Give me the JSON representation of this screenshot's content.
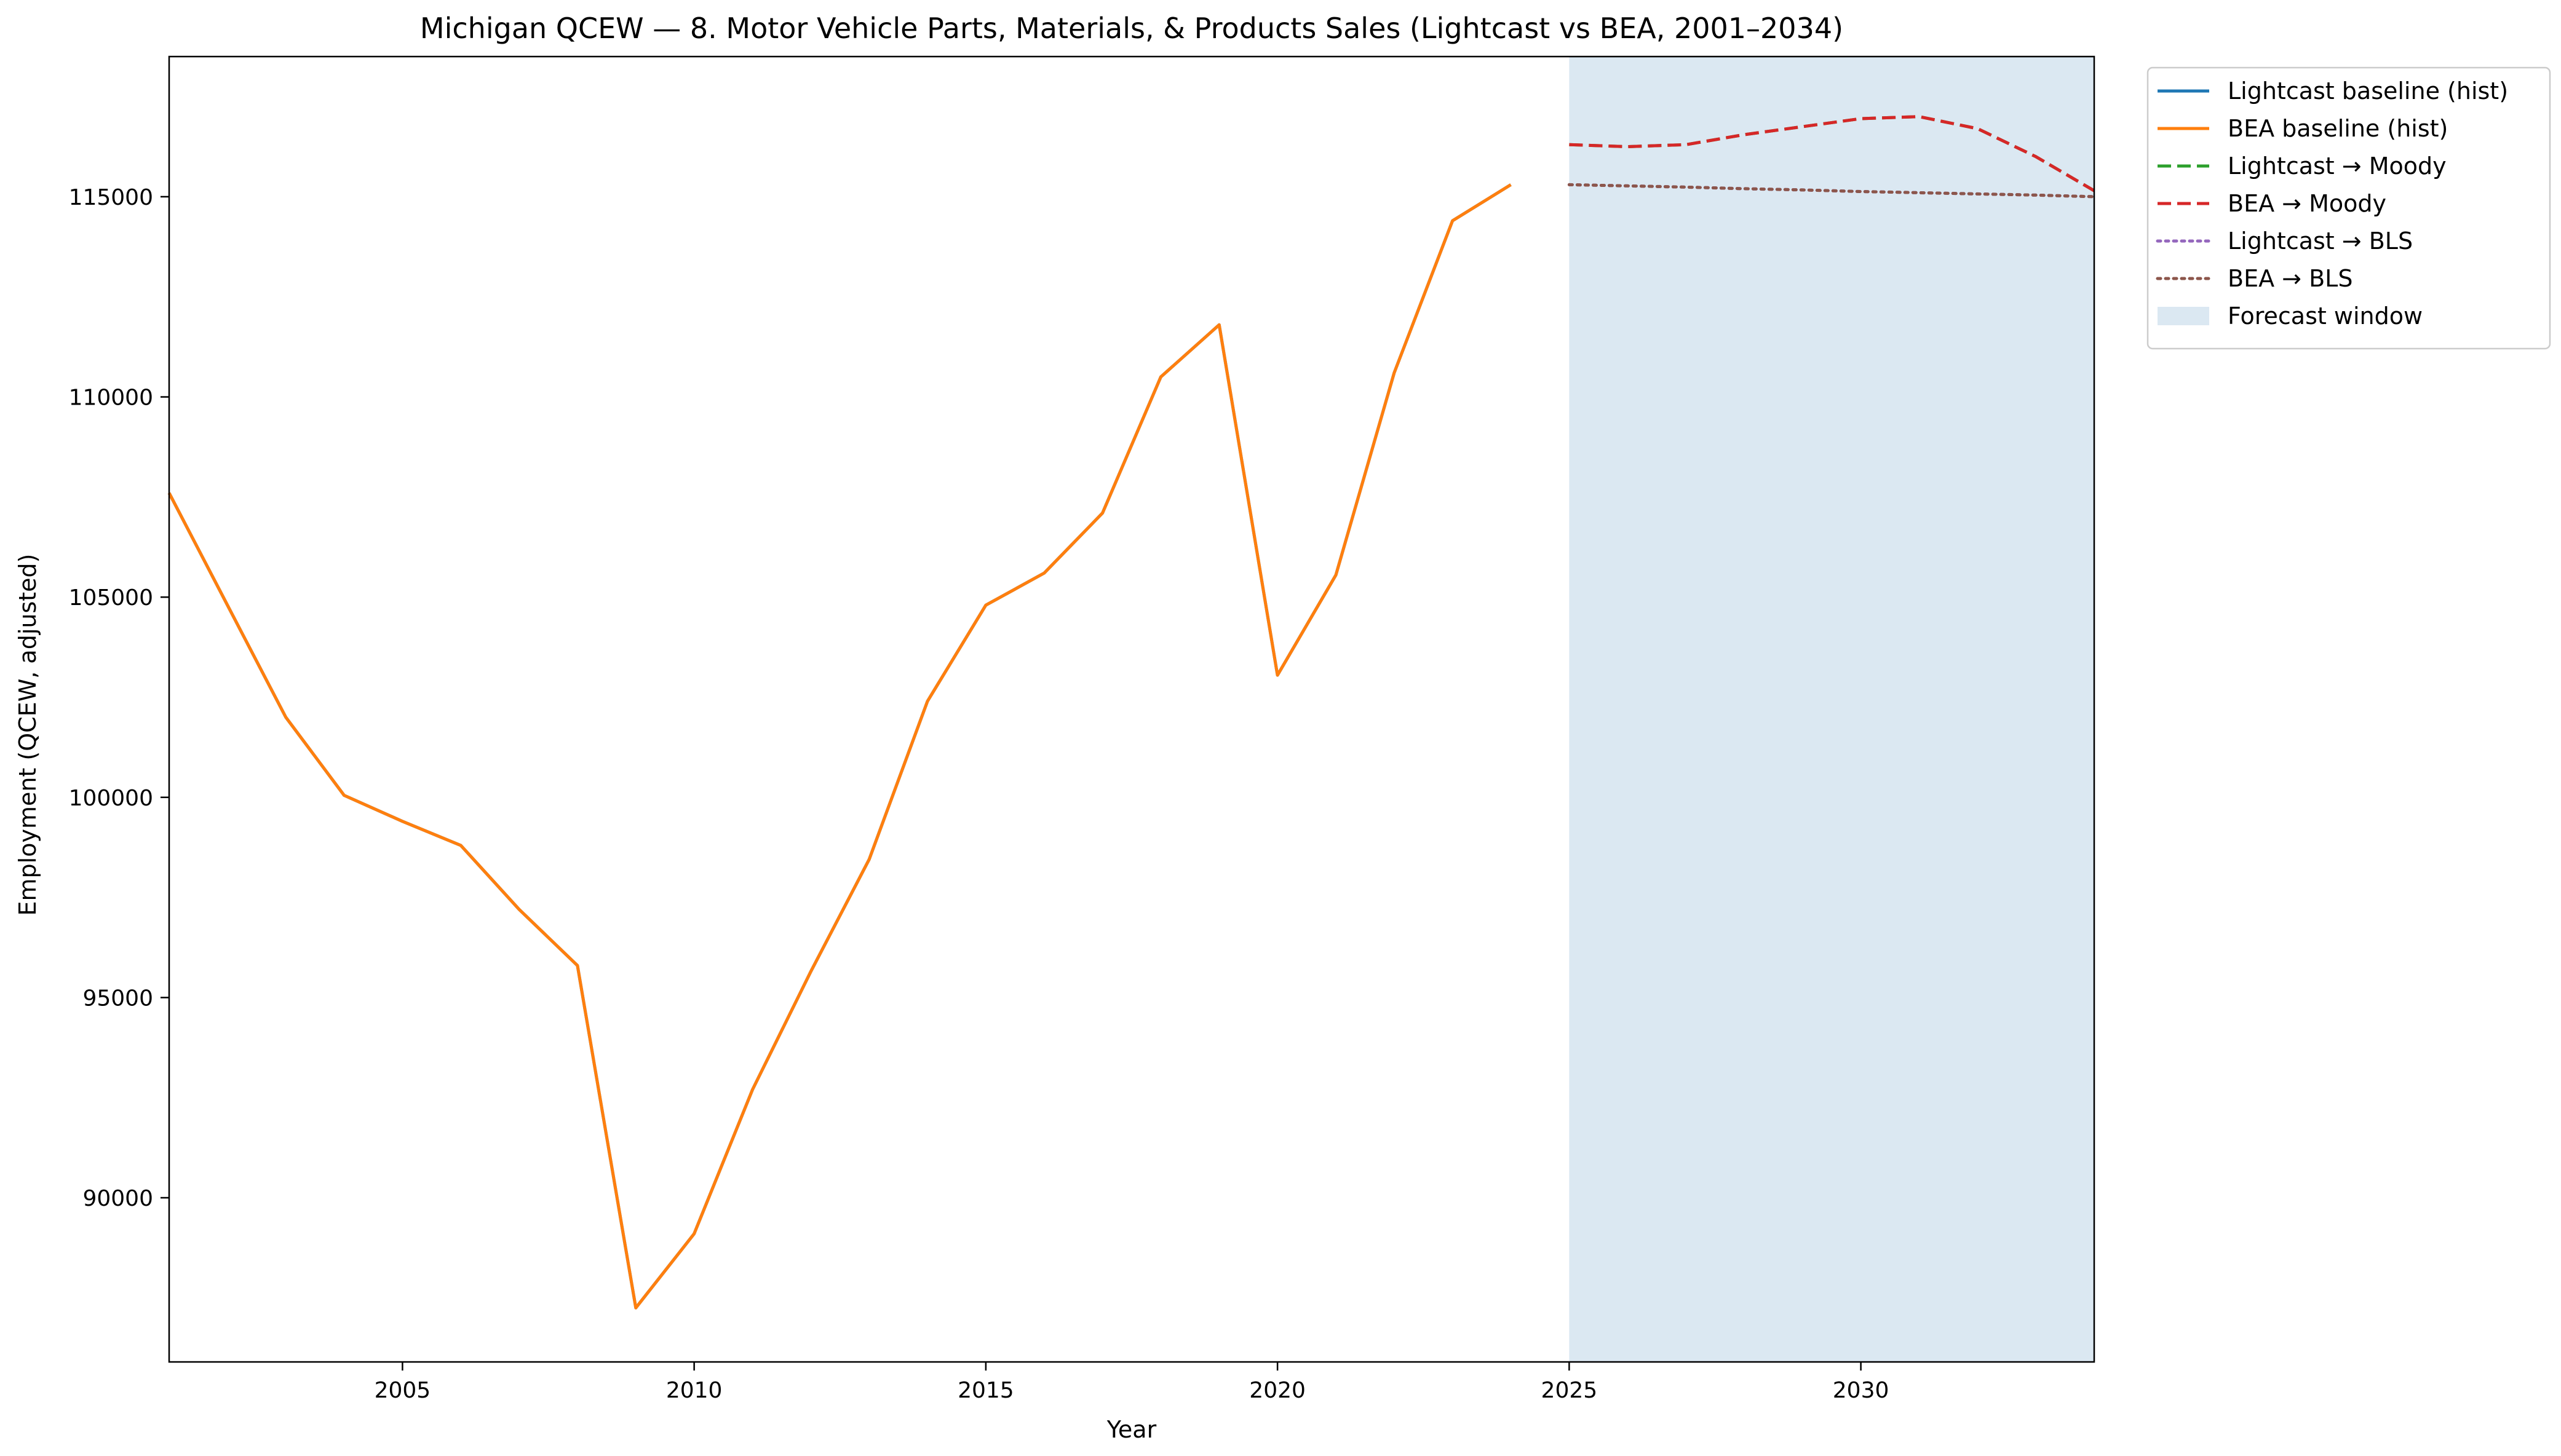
{
  "chart_data": {
    "type": "line",
    "title": "Michigan QCEW — 8. Motor Vehicle Parts, Materials, & Products Sales (Lightcast vs BEA, 2001–2034)",
    "xlabel": "Year",
    "ylabel": "Employment (QCEW, adjusted)",
    "xlim": [
      2001,
      2034
    ],
    "ylim": [
      85900,
      118500
    ],
    "xticks": [
      2005,
      2010,
      2015,
      2020,
      2025,
      2030
    ],
    "yticks": [
      90000,
      95000,
      100000,
      105000,
      110000,
      115000
    ],
    "grid": false,
    "legend_position": "outside-top-right",
    "forecast_window": {
      "start": 2025,
      "end": 2034,
      "color": "#dbe8f2"
    },
    "series": [
      {
        "name": "Lightcast baseline (hist)",
        "color": "#1f77b4",
        "style": "solid",
        "x": [
          2001,
          2002,
          2003,
          2004,
          2005,
          2006,
          2007,
          2008,
          2009,
          2010,
          2011,
          2012,
          2013,
          2014,
          2015,
          2016,
          2017,
          2018,
          2019,
          2020,
          2021,
          2022,
          2023,
          2024
        ],
        "y": [
          107600,
          104800,
          102000,
          100050,
          99400,
          98800,
          97200,
          95800,
          87250,
          89100,
          92700,
          95650,
          98450,
          102400,
          104800,
          105600,
          107100,
          110500,
          111800,
          103050,
          105550,
          110600,
          114400,
          115300
        ]
      },
      {
        "name": "BEA baseline (hist)",
        "color": "#ff7f0e",
        "style": "solid",
        "x": [
          2001,
          2002,
          2003,
          2004,
          2005,
          2006,
          2007,
          2008,
          2009,
          2010,
          2011,
          2012,
          2013,
          2014,
          2015,
          2016,
          2017,
          2018,
          2019,
          2020,
          2021,
          2022,
          2023,
          2024
        ],
        "y": [
          107600,
          104800,
          102000,
          100050,
          99400,
          98800,
          97200,
          95800,
          87250,
          89100,
          92700,
          95650,
          98450,
          102400,
          104800,
          105600,
          107100,
          110500,
          111800,
          103050,
          105550,
          110600,
          114400,
          115300
        ]
      },
      {
        "name": "Lightcast → Moody",
        "color": "#2ca02c",
        "style": "dashed",
        "x": [
          2025,
          2026,
          2027,
          2028,
          2029,
          2030,
          2031,
          2032,
          2033,
          2034
        ],
        "y": [
          116300,
          116250,
          116300,
          116550,
          116750,
          116950,
          117000,
          116700,
          116000,
          115150
        ]
      },
      {
        "name": "BEA → Moody",
        "color": "#d62728",
        "style": "dashed",
        "x": [
          2025,
          2026,
          2027,
          2028,
          2029,
          2030,
          2031,
          2032,
          2033,
          2034
        ],
        "y": [
          116300,
          116250,
          116300,
          116550,
          116750,
          116950,
          117000,
          116700,
          116000,
          115150
        ]
      },
      {
        "name": "Lightcast → BLS",
        "color": "#9467bd",
        "style": "dotted",
        "x": [
          2025,
          2026,
          2027,
          2028,
          2029,
          2030,
          2031,
          2032,
          2033,
          2034
        ],
        "y": [
          115300,
          115270,
          115240,
          115200,
          115170,
          115130,
          115100,
          115070,
          115040,
          115000
        ]
      },
      {
        "name": "BEA → BLS",
        "color": "#8c564b",
        "style": "dotted",
        "x": [
          2025,
          2026,
          2027,
          2028,
          2029,
          2030,
          2031,
          2032,
          2033,
          2034
        ],
        "y": [
          115300,
          115270,
          115240,
          115200,
          115170,
          115130,
          115100,
          115070,
          115040,
          115000
        ]
      }
    ],
    "legend_entries": [
      {
        "label": "Lightcast baseline (hist)",
        "kind": "line",
        "color": "#1f77b4",
        "style": "solid"
      },
      {
        "label": "BEA baseline (hist)",
        "kind": "line",
        "color": "#ff7f0e",
        "style": "solid"
      },
      {
        "label": "Lightcast → Moody",
        "kind": "line",
        "color": "#2ca02c",
        "style": "dashed"
      },
      {
        "label": "BEA → Moody",
        "kind": "line",
        "color": "#d62728",
        "style": "dashed"
      },
      {
        "label": "Lightcast → BLS",
        "kind": "line",
        "color": "#9467bd",
        "style": "dotted"
      },
      {
        "label": "BEA → BLS",
        "kind": "line",
        "color": "#8c564b",
        "style": "dotted"
      },
      {
        "label": "Forecast window",
        "kind": "patch",
        "color": "#dbe8f2"
      }
    ]
  }
}
